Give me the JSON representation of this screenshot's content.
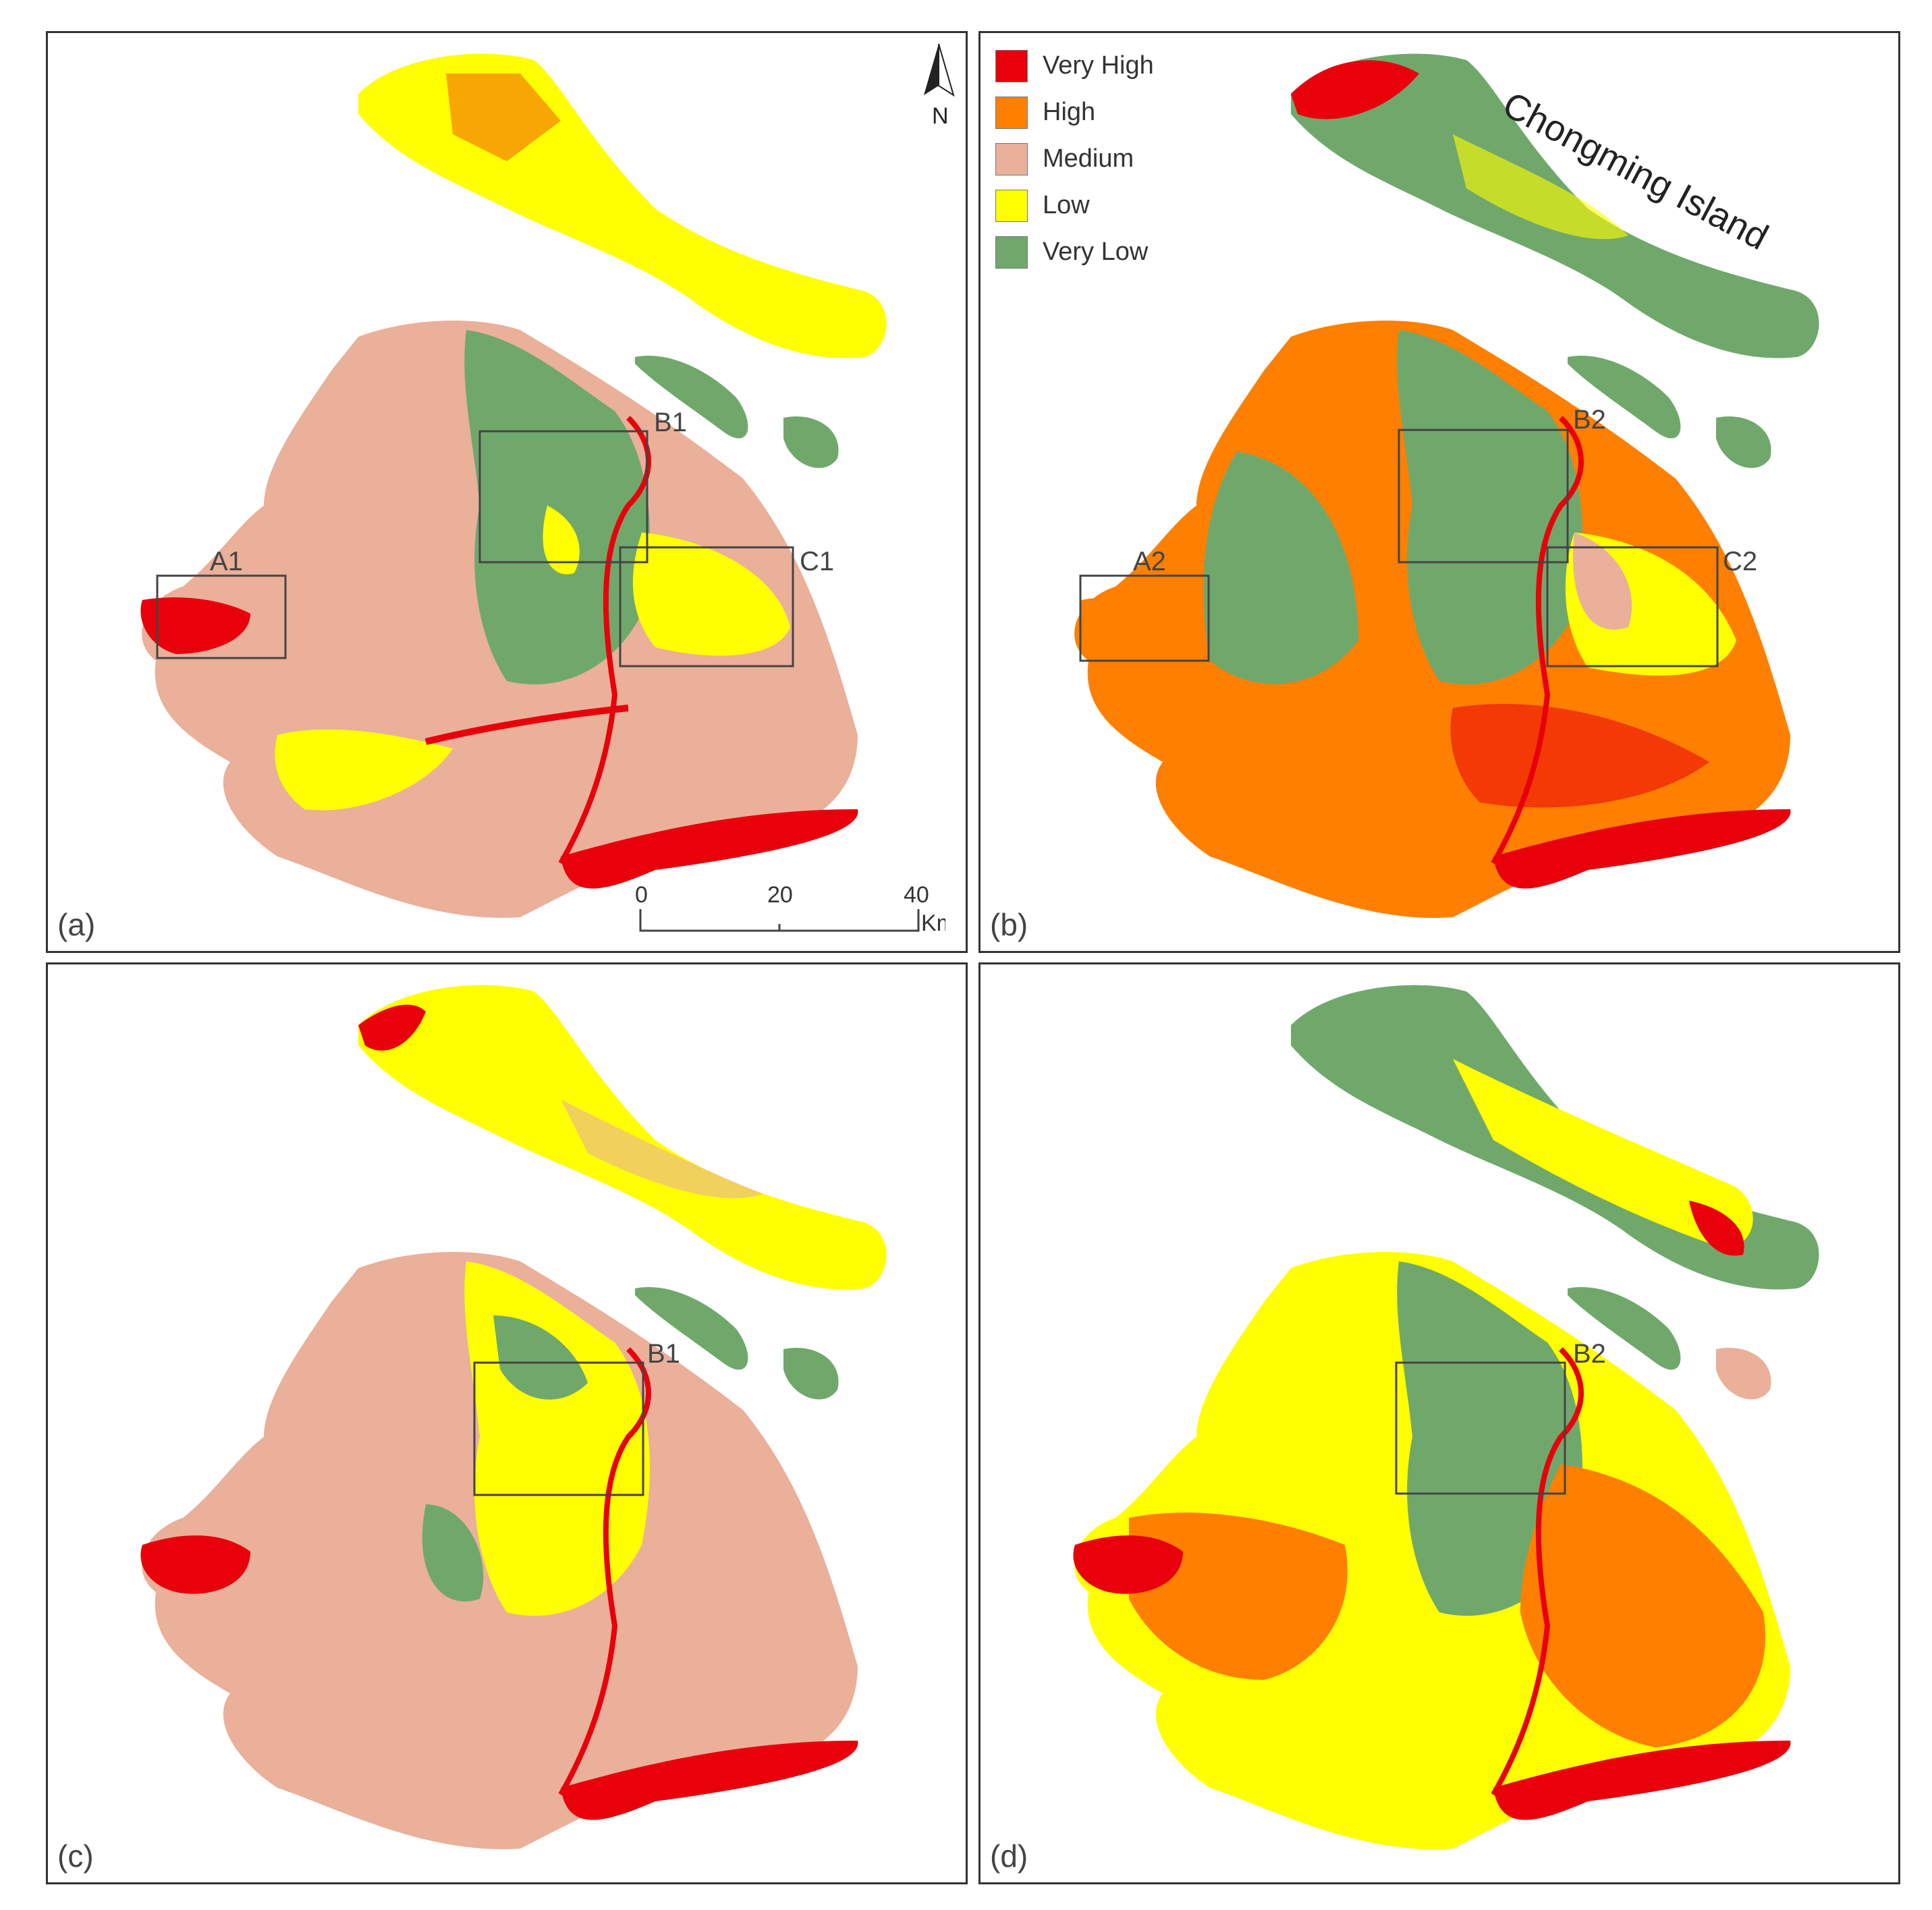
{
  "legend": {
    "items": [
      {
        "label": "Very High",
        "color": "#e8000b"
      },
      {
        "label": "High",
        "color": "#ff7f00"
      },
      {
        "label": "Medium",
        "color": "#eab09a"
      },
      {
        "label": "Low",
        "color": "#ffff00"
      },
      {
        "label": "Very Low",
        "color": "#70a86c"
      }
    ]
  },
  "north_arrow": {
    "label": "N",
    "icon": "north-arrow-icon"
  },
  "scale_bar": {
    "ticks": [
      "0",
      "20",
      "40"
    ],
    "unit": "Km"
  },
  "island_label": "Chongming Island",
  "panels": [
    {
      "id": "a",
      "label": "(a)",
      "boxes": [
        "A1",
        "B1",
        "C1"
      ]
    },
    {
      "id": "b",
      "label": "(b)",
      "boxes": [
        "A2",
        "B2",
        "C2"
      ]
    },
    {
      "id": "c",
      "label": "(c)",
      "boxes": [
        "B1"
      ]
    },
    {
      "id": "d",
      "label": "(d)",
      "boxes": [
        "B2"
      ]
    }
  ]
}
